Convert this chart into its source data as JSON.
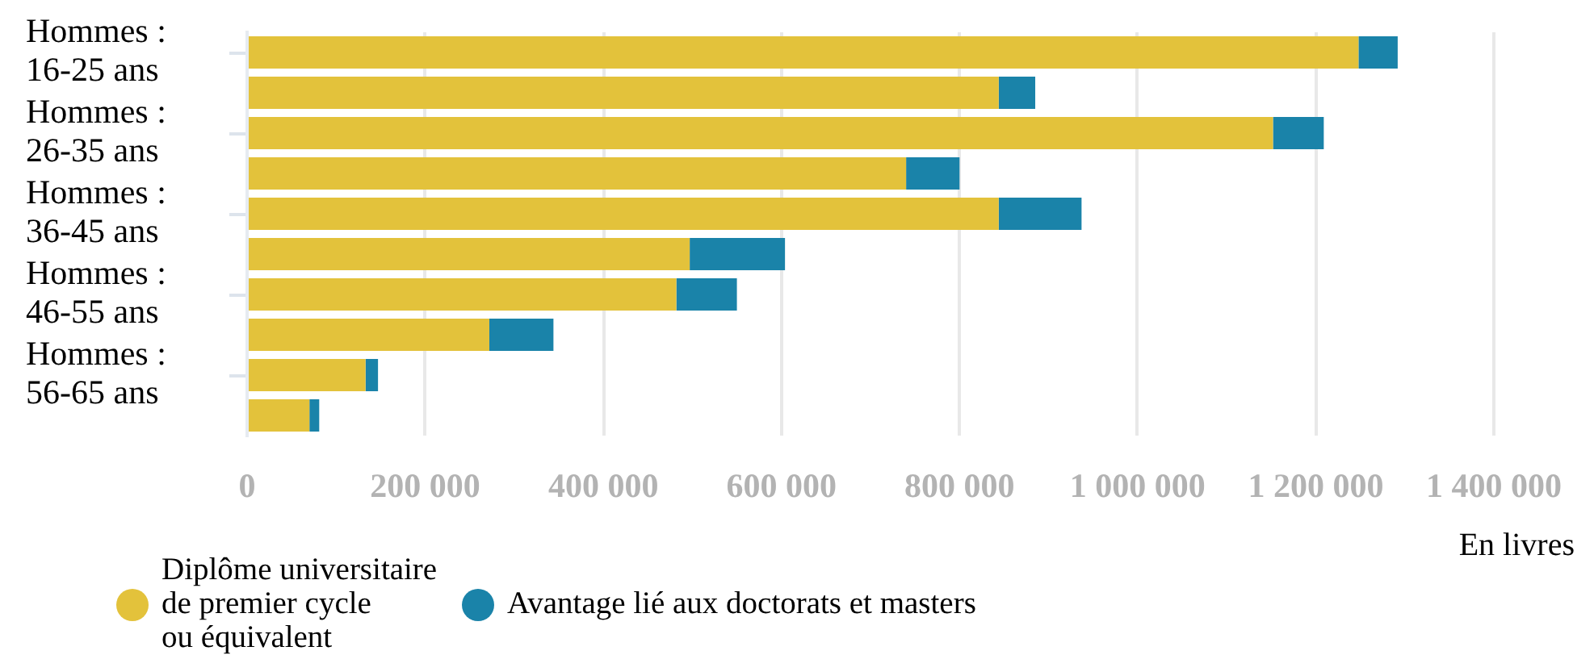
{
  "chart_data": {
    "type": "bar",
    "orientation": "horizontal",
    "stacked": true,
    "categories": [
      "Hommes : 16-25 ans",
      null,
      "Hommes : 26-35 ans",
      null,
      "Hommes : 36-45 ans",
      null,
      "Hommes : 46-55 ans",
      null,
      "Hommes : 56-65 ans",
      null
    ],
    "series": [
      {
        "name": "Diplôme universitaire de premier cycle ou équivalent",
        "color": "#e3c23b",
        "values": [
          1248000,
          844000,
          1152000,
          740000,
          844000,
          497000,
          482000,
          272000,
          133000,
          70000
        ]
      },
      {
        "name": "Avantage lié aux doctorats et masters",
        "color": "#1a83a9",
        "values": [
          44000,
          41000,
          57000,
          60000,
          93000,
          107000,
          68000,
          72000,
          14000,
          11000
        ]
      }
    ],
    "xlim": [
      0,
      1400000
    ],
    "xticks": [
      0,
      {
        "value": 200000,
        "label": "200 000"
      },
      {
        "value": 400000,
        "label": "400 000"
      },
      {
        "value": 600000,
        "label": "600 000"
      },
      {
        "value": 800000,
        "label": "800 000"
      },
      {
        "value": 1000000,
        "label": "1 000 000"
      },
      {
        "value": 1200000,
        "label": "1 200 000"
      },
      {
        "value": 1400000,
        "label": "1 400 000"
      }
    ],
    "xlabel": "En livres",
    "grid": "x",
    "legend": "bottom left"
  }
}
